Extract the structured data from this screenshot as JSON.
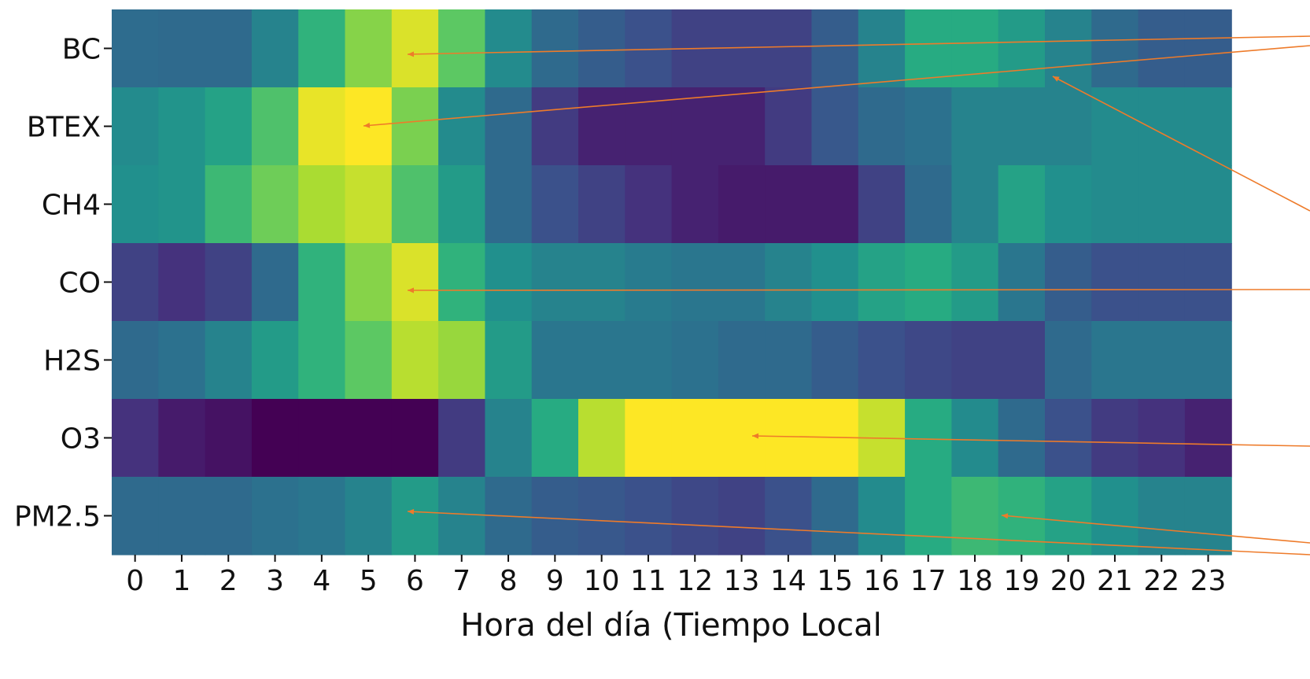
{
  "chart_data": {
    "type": "heatmap",
    "xlabel": "Hora del día (Tiempo Local",
    "x": [
      "0",
      "1",
      "2",
      "3",
      "4",
      "5",
      "6",
      "7",
      "8",
      "9",
      "10",
      "11",
      "12",
      "13",
      "14",
      "15",
      "16",
      "17",
      "18",
      "19",
      "20",
      "21",
      "22",
      "23"
    ],
    "y": [
      "BC",
      "BTEX",
      "CH4",
      "CO",
      "H2S",
      "O3",
      "PM2.5"
    ],
    "values": [
      [
        0.36,
        0.35,
        0.35,
        0.45,
        0.65,
        0.82,
        0.95,
        0.75,
        0.48,
        0.35,
        0.3,
        0.25,
        0.2,
        0.2,
        0.2,
        0.3,
        0.45,
        0.62,
        0.62,
        0.55,
        0.45,
        0.35,
        0.3,
        0.3
      ],
      [
        0.48,
        0.52,
        0.58,
        0.72,
        0.97,
        1.0,
        0.8,
        0.48,
        0.35,
        0.18,
        0.1,
        0.1,
        0.1,
        0.1,
        0.18,
        0.28,
        0.35,
        0.38,
        0.45,
        0.45,
        0.45,
        0.48,
        0.48,
        0.48
      ],
      [
        0.5,
        0.52,
        0.68,
        0.78,
        0.88,
        0.92,
        0.72,
        0.55,
        0.35,
        0.25,
        0.2,
        0.15,
        0.1,
        0.08,
        0.08,
        0.08,
        0.2,
        0.35,
        0.45,
        0.58,
        0.5,
        0.48,
        0.48,
        0.48
      ],
      [
        0.2,
        0.15,
        0.2,
        0.35,
        0.65,
        0.82,
        0.95,
        0.65,
        0.5,
        0.45,
        0.45,
        0.42,
        0.4,
        0.4,
        0.45,
        0.5,
        0.58,
        0.62,
        0.55,
        0.4,
        0.3,
        0.25,
        0.25,
        0.25
      ],
      [
        0.35,
        0.38,
        0.45,
        0.55,
        0.65,
        0.75,
        0.9,
        0.85,
        0.55,
        0.4,
        0.4,
        0.4,
        0.38,
        0.35,
        0.35,
        0.3,
        0.25,
        0.22,
        0.2,
        0.2,
        0.35,
        0.4,
        0.4,
        0.4
      ],
      [
        0.15,
        0.08,
        0.05,
        0.0,
        0.0,
        0.0,
        0.0,
        0.18,
        0.45,
        0.62,
        0.9,
        1.0,
        1.0,
        1.0,
        1.0,
        1.0,
        0.92,
        0.62,
        0.48,
        0.35,
        0.25,
        0.18,
        0.15,
        0.1
      ],
      [
        0.35,
        0.35,
        0.35,
        0.38,
        0.4,
        0.45,
        0.55,
        0.45,
        0.35,
        0.3,
        0.28,
        0.25,
        0.22,
        0.2,
        0.25,
        0.35,
        0.48,
        0.62,
        0.68,
        0.65,
        0.58,
        0.5,
        0.45,
        0.45
      ]
    ],
    "colormap": "viridis",
    "annotation_color": "#ee7b2a",
    "grid": false
  }
}
